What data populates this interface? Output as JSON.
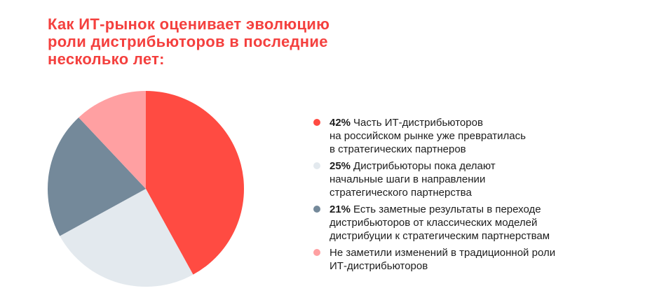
{
  "title": "Как ИТ-рынок оценивает эволюцию\nроли дистрибьюторов в последние\nнесколько лет:",
  "palette": {
    "title_red": "#f4403e",
    "pie_red": "#ff4b42",
    "pie_light_gray": "#e3e9ee",
    "pie_slate": "#74899a",
    "pie_pink": "#ffa0a2",
    "legend_text": "#1d1d1d",
    "background": "#ffffff"
  },
  "chart_data": {
    "type": "pie",
    "title": "Как ИТ-рынок оценивает эволюцию роли дистрибьюторов в последние несколько лет:",
    "start_angle_deg": 0,
    "direction": "clockwise",
    "legend_position": "right",
    "slices": [
      {
        "value": 42,
        "color": "#ff4b42",
        "label": "Часть ИТ-дистрибьюторов на российском рынке уже превратилась в стратегических партнеров"
      },
      {
        "value": 25,
        "color": "#e3e9ee",
        "label": "Дистрибьюторы пока делают начальные шаги в направлении стратегического партнерства"
      },
      {
        "value": 21,
        "color": "#74899a",
        "label": "Есть заметные результаты в переходе дистрибьюторов от классических моделей дистрибуции к стратегическим партнерствам"
      },
      {
        "value": 12,
        "color": "#ffa0a2",
        "label": "Не заметили изменений в традиционной роли ИТ-дистрибьюторов"
      }
    ]
  },
  "legend": {
    "items": [
      {
        "pct": "42%",
        "text": "Часть ИТ-дистрибьюторов\nна российском рынке уже превратилась\nв стратегических партнеров"
      },
      {
        "pct": "25%",
        "text": "Дистрибьюторы пока делают\nначальные шаги в направлении\nстратегического партнерства"
      },
      {
        "pct": "21%",
        "text": "Есть заметные результаты в переходе\nдистрибьюторов от классических моделей\nдистрибуции к стратегическим партнерствам"
      },
      {
        "pct": "",
        "text": "Не заметили изменений в традиционной роли\nИТ-дистрибьюторов"
      }
    ]
  }
}
